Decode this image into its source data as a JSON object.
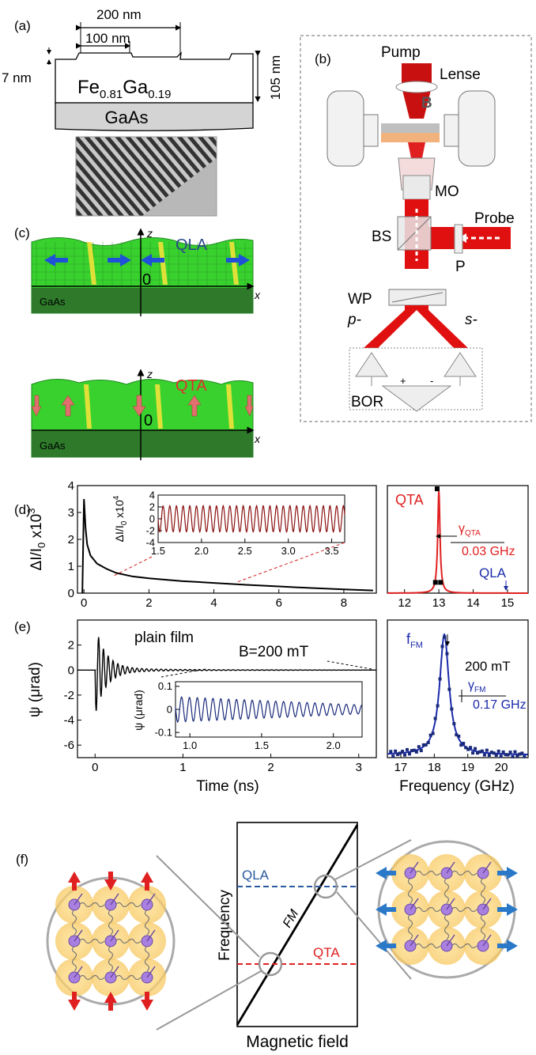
{
  "panel_a": {
    "label": "(a)",
    "dim_200": "200 nm",
    "dim_100": "100 nm",
    "dim_7": "7 nm",
    "dim_105": "105 nm",
    "film_main": "Fe",
    "film_sub1": "0.81",
    "film_mid": "Ga",
    "film_sub2": "0.19",
    "substrate": "GaAs"
  },
  "panel_b": {
    "label": "(b)",
    "pump": "Pump",
    "lense": "Lense",
    "b_field": "B",
    "mo": "MO",
    "probe": "Probe",
    "bs": "BS",
    "p": "P",
    "wp": "WP",
    "p_pol": "p-",
    "s_pol": "s-",
    "bor": "BOR",
    "plus": "+",
    "minus": "-"
  },
  "panel_c": {
    "label": "(c)",
    "top_mode": "QLA",
    "bottom_mode": "QTA",
    "z": "z",
    "x": "x",
    "zero": "0",
    "substrate": "GaAs",
    "colors": {
      "qla": "#2a4a8a",
      "qta": "#e03030",
      "film": "#39d12e",
      "substrate": "#2e7a2a"
    }
  },
  "panel_d": {
    "label": "(d)",
    "ylabel_main": "ΔI/I",
    "ylabel_sub": "0",
    "ylabel_tail": " x10",
    "ylabel_exp": "3",
    "inset_ylabel_main": "ΔI/I",
    "inset_ylabel_sub": "0",
    "inset_ylabel_tail": " x10",
    "inset_ylabel_exp": "4",
    "spectrum_peak": "QTA",
    "gamma_main": "γ",
    "gamma_sub": "QTA",
    "gamma_value": "0.03 GHz",
    "qla_mark": "QLA"
  },
  "panel_e": {
    "label": "(e)",
    "ylabel": "ψ (μrad)",
    "inset_ylabel": "ψ (μrad)",
    "plain_film": "plain film",
    "field": "B=200 mT",
    "xlabel": "Time (ns)",
    "spec_xlabel": "Frequency (GHz)",
    "f_main": "f",
    "f_sub": "FM",
    "spec_field": "200 mT",
    "gamma_main": "γ",
    "gamma_sub": "FM",
    "gamma_value": "0.17 GHz"
  },
  "panel_f": {
    "label": "(f)",
    "ylabel": "Frequency",
    "xlabel": "Magnetic field",
    "line_qla": "QLA",
    "line_qta": "QTA",
    "line_fm": "FM"
  },
  "chart_data": [
    {
      "type": "line",
      "panel": "d-main",
      "xlim": [
        -0.2,
        9
      ],
      "ylim": [
        0,
        4
      ],
      "xticks": [
        0,
        2,
        4,
        6,
        8
      ],
      "yticks": [
        0,
        1,
        2,
        3,
        4
      ],
      "series": [
        {
          "x": [
            0,
            0.05,
            0.1,
            0.2,
            0.4,
            0.7,
            1,
            1.5,
            2,
            3,
            4,
            5,
            6,
            7,
            8,
            8.9
          ],
          "values": [
            3.5,
            2.4,
            1.8,
            1.4,
            1.1,
            0.9,
            0.75,
            0.62,
            0.55,
            0.45,
            0.38,
            0.31,
            0.25,
            0.19,
            0.14,
            0.1
          ]
        }
      ]
    },
    {
      "type": "line",
      "panel": "d-inset",
      "xlim": [
        1.5,
        3.65
      ],
      "ylim": [
        -4,
        4
      ],
      "xticks": [
        1.5,
        2.0,
        2.5,
        3.0,
        3.5
      ],
      "yticks": [
        -4,
        -2,
        0,
        2,
        4
      ],
      "series": [
        {
          "amplitude": 0.6,
          "frequency_ghz": 13,
          "offset": 0
        }
      ]
    },
    {
      "type": "line",
      "panel": "d-spectrum",
      "xlim": [
        11.5,
        15.6
      ],
      "xticks": [
        12,
        13,
        14,
        15
      ],
      "peak_x": 13,
      "width": 0.03,
      "points": [
        {
          "x": 12.9,
          "y": 0.1
        },
        {
          "x": 12.95,
          "y": 0.97
        },
        {
          "x": 13.05,
          "y": 0.1
        }
      ]
    },
    {
      "type": "line",
      "panel": "e-main",
      "xlim": [
        -0.2,
        3.2
      ],
      "ylim": [
        -7,
        4
      ],
      "xticks": [
        0,
        1,
        2,
        3
      ],
      "yticks": [
        -6,
        -4,
        -2,
        0,
        2
      ],
      "series": [
        {
          "frequency_ghz": 18.3,
          "amplitude": 3.5,
          "decay_ns": 0.12,
          "start": 0
        }
      ]
    },
    {
      "type": "line",
      "panel": "e-inset",
      "xlim": [
        0.9,
        2.2
      ],
      "ylim": [
        -0.12,
        0.12
      ],
      "xticks": [
        1.0,
        1.5,
        2.0
      ],
      "yticks": [
        -0.1,
        0.0,
        0.1
      ],
      "series": [
        {
          "frequency_ghz": 18.3,
          "amplitude": 0.055
        }
      ]
    },
    {
      "type": "line",
      "panel": "e-spectrum",
      "xlim": [
        16.6,
        20.8
      ],
      "xticks": [
        17,
        18,
        19,
        20
      ],
      "peak_x": 18.3,
      "width": 0.17
    }
  ]
}
